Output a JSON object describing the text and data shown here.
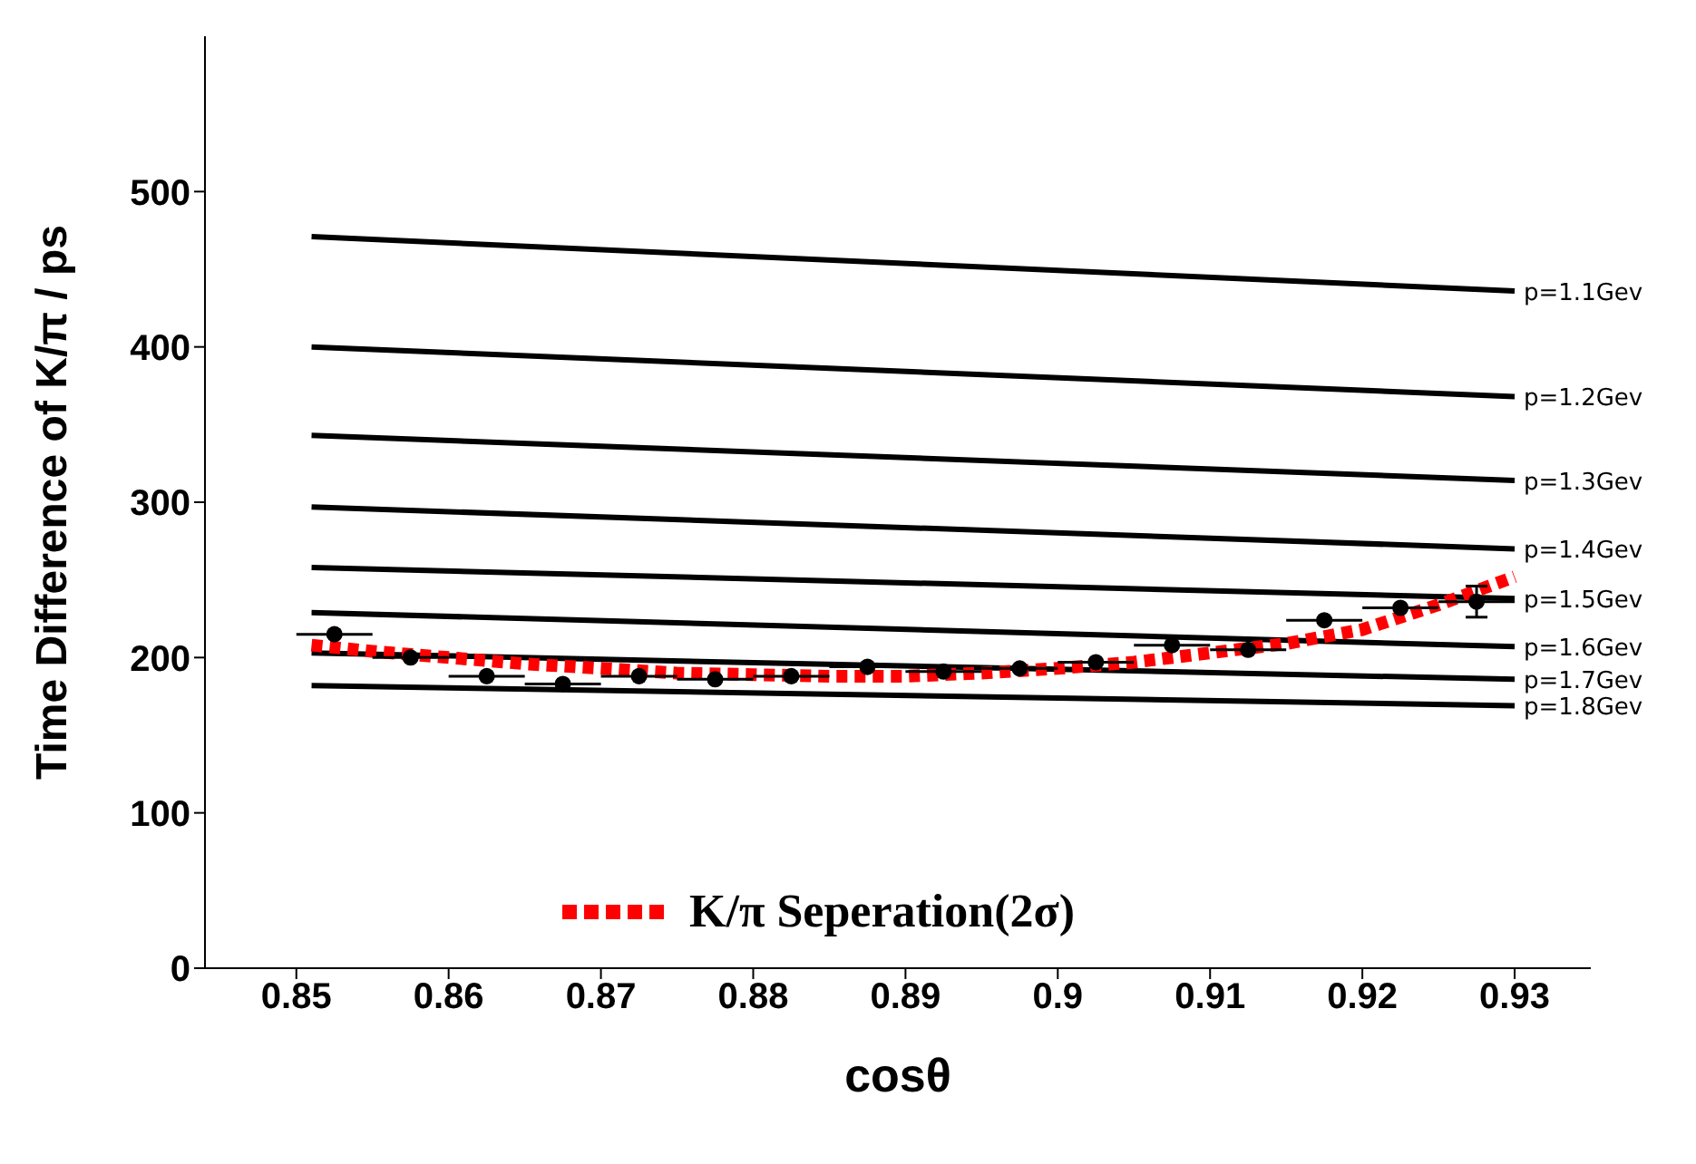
{
  "chart_data": {
    "type": "line",
    "xlabel": "cosθ",
    "ylabel": "Time Difference of K/π / ps",
    "xlim": [
      0.844,
      0.935
    ],
    "xticks": [
      0.85,
      0.86,
      0.87,
      0.88,
      0.89,
      {
        "value": 0.9,
        "label": "0.9"
      },
      0.91,
      0.92,
      0.93
    ],
    "ylim": [
      0,
      600
    ],
    "yticks": [
      0,
      100,
      200,
      300,
      400,
      500
    ],
    "grid": false,
    "legend": "bottom",
    "series": [
      {
        "name": "p=1.1Gev",
        "color": "#000000",
        "x": [
          0.851,
          0.93
        ],
        "values": [
          471,
          436
        ],
        "line_style": "solid",
        "marker": "none"
      },
      {
        "name": "p=1.2Gev",
        "color": "#000000",
        "x": [
          0.851,
          0.93
        ],
        "values": [
          400,
          368
        ],
        "line_style": "solid",
        "marker": "none"
      },
      {
        "name": "p=1.3Gev",
        "color": "#000000",
        "x": [
          0.851,
          0.93
        ],
        "values": [
          343,
          314
        ],
        "line_style": "solid",
        "marker": "none"
      },
      {
        "name": "p=1.4Gev",
        "color": "#000000",
        "x": [
          0.851,
          0.93
        ],
        "values": [
          297,
          270
        ],
        "line_style": "solid",
        "marker": "none"
      },
      {
        "name": "p=1.5Gev",
        "color": "#000000",
        "x": [
          0.851,
          0.93
        ],
        "values": [
          258,
          238
        ],
        "line_style": "solid",
        "marker": "none"
      },
      {
        "name": "p=1.6Gev",
        "color": "#000000",
        "x": [
          0.851,
          0.93
        ],
        "values": [
          229,
          207
        ],
        "line_style": "solid",
        "marker": "none"
      },
      {
        "name": "p=1.7Gev",
        "color": "#000000",
        "x": [
          0.851,
          0.93
        ],
        "values": [
          203,
          186
        ],
        "line_style": "solid",
        "marker": "none"
      },
      {
        "name": "p=1.8Gev",
        "color": "#000000",
        "x": [
          0.851,
          0.93
        ],
        "values": [
          182,
          169
        ],
        "line_style": "solid",
        "marker": "none"
      },
      {
        "type": "scatter",
        "color": "#000000",
        "marker": "circle",
        "x": [
          0.8525,
          0.8575,
          0.8625,
          0.8675,
          0.8725,
          0.8775,
          0.8825,
          0.8875,
          0.8925,
          0.8975,
          0.9025,
          0.9075,
          0.9125,
          0.9175,
          0.9225,
          0.9275
        ],
        "values": [
          215,
          200,
          188,
          183,
          188,
          186,
          188,
          194,
          191,
          193,
          197,
          208,
          205,
          224,
          232,
          236
        ],
        "xerrors": [
          0.0025,
          0.0025,
          0.0025,
          0.0025,
          0.0025,
          0.0025,
          0.0025,
          0.0025,
          0.0025,
          0.0025,
          0.0025,
          0.0025,
          0.0025,
          0.0025,
          0.0025,
          0.0025
        ],
        "errors": [
          null,
          null,
          null,
          null,
          null,
          null,
          null,
          null,
          null,
          null,
          null,
          null,
          null,
          null,
          null,
          10
        ]
      },
      {
        "name": "K/π Seperation(2σ)",
        "color": "#ff0000",
        "line_style": "dotted",
        "marker": "none",
        "x": [
          0.851,
          0.855,
          0.86,
          0.865,
          0.87,
          0.875,
          0.88,
          0.885,
          0.89,
          0.895,
          0.9,
          0.905,
          0.91,
          0.915,
          0.92,
          0.925,
          0.93
        ],
        "values": [
          208,
          204,
          200,
          196,
          193,
          190,
          189,
          188,
          188,
          190,
          193,
          197,
          203,
          209,
          218,
          234,
          252
        ]
      }
    ]
  }
}
